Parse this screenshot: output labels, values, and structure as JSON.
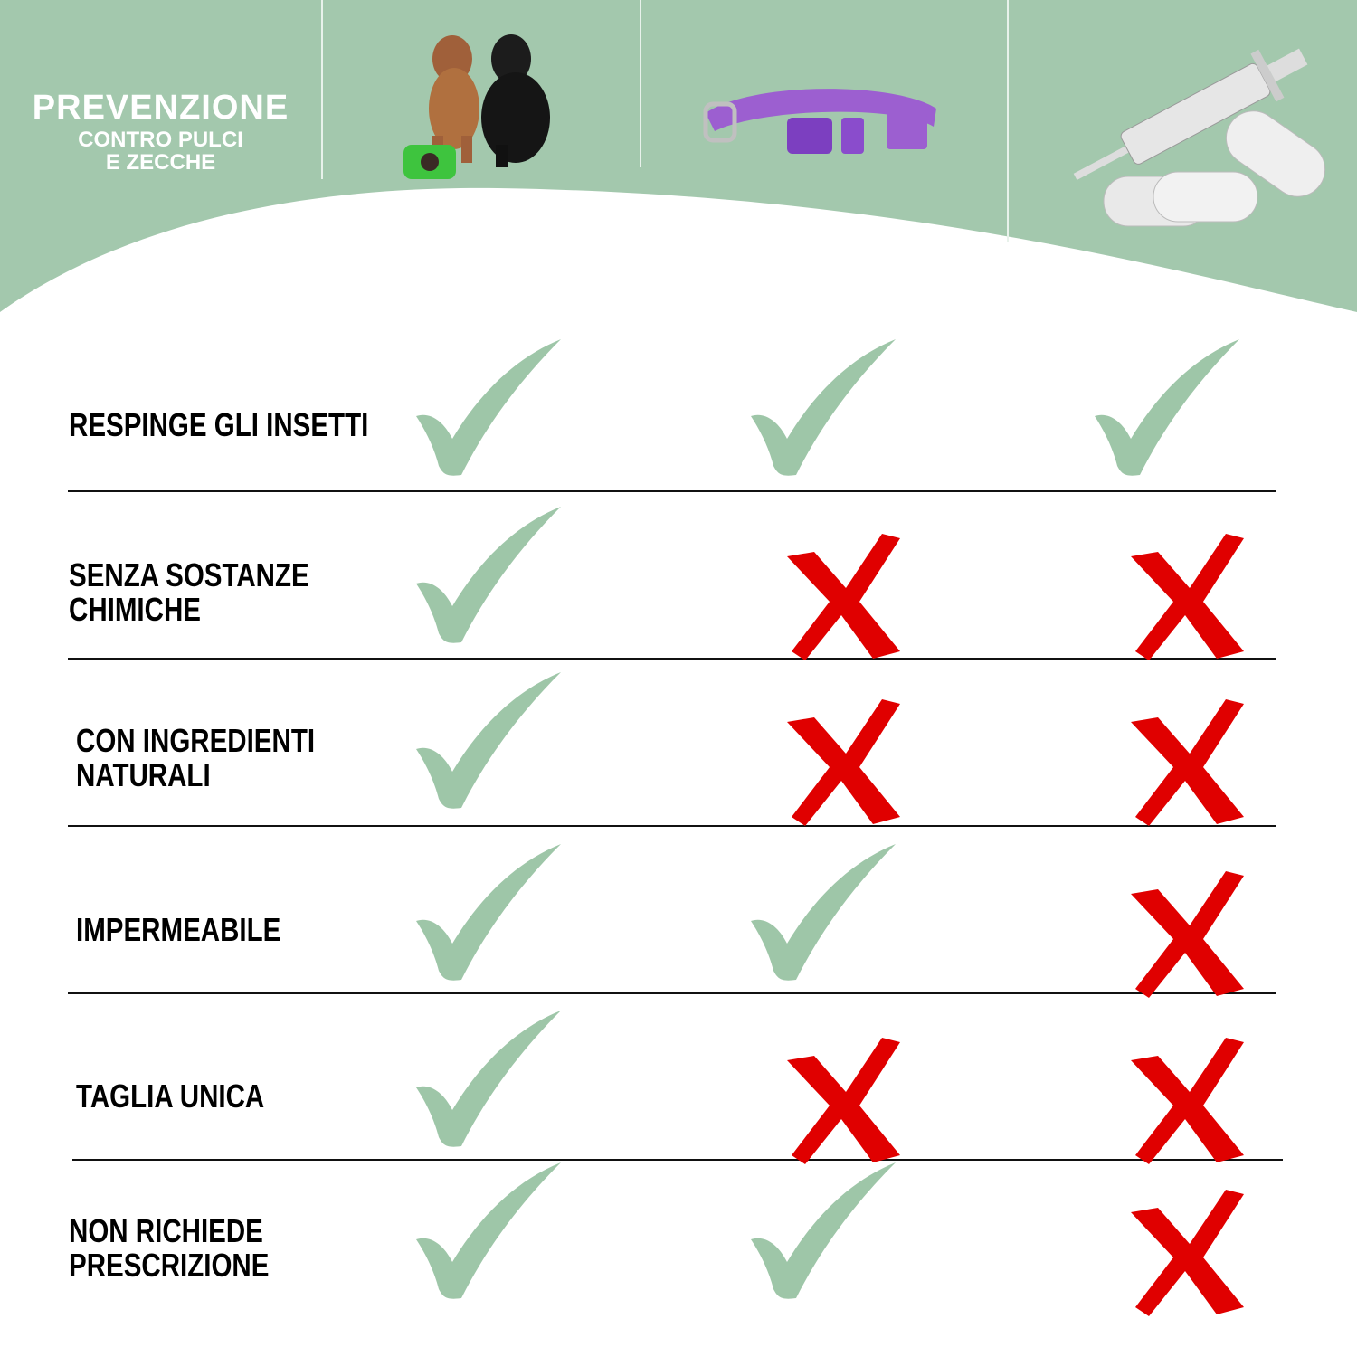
{
  "header": {
    "title": "PREVENZIONE",
    "subtitle": "CONTRO PULCI\nE ZECCHE",
    "products": [
      {
        "name": "dogs-with-repellent-device-image"
      },
      {
        "name": "purple-collar-image"
      },
      {
        "name": "syringe-and-pills-image"
      }
    ]
  },
  "colors": {
    "green": "#a3c8ad",
    "check": "#9ec6a8",
    "cross": "#e00000",
    "text": "#000000"
  },
  "rows": [
    {
      "label": "RESPINGE GLI INSETTI",
      "values": [
        true,
        true,
        true
      ]
    },
    {
      "label": "SENZA SOSTANZE\nCHIMICHE",
      "values": [
        true,
        false,
        false
      ]
    },
    {
      "label": "CON INGREDIENTI\nNATURALI",
      "values": [
        true,
        false,
        false
      ]
    },
    {
      "label": "IMPERMEABILE",
      "values": [
        true,
        true,
        false
      ]
    },
    {
      "label": "TAGLIA UNICA",
      "values": [
        true,
        false,
        false
      ]
    },
    {
      "label": "NON RICHIEDE\nPRESCRIZIONE",
      "values": [
        true,
        true,
        false
      ]
    }
  ]
}
